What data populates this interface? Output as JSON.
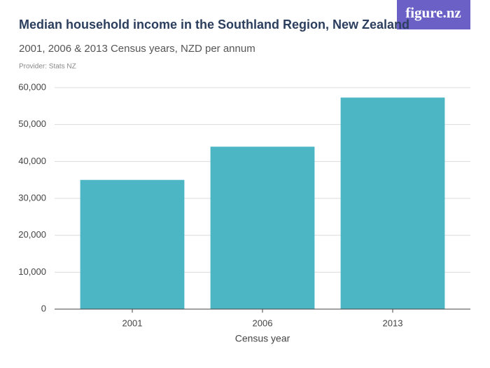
{
  "chart_data": {
    "type": "bar",
    "title": "Median household income in the Southland Region, New Zealand",
    "subtitle": "2001, 2006 & 2013 Census years, NZD per annum",
    "provider": "Provider: Stats NZ",
    "brand": "figure.nz",
    "x_label": "Census year",
    "categories": [
      "2001",
      "2006",
      "2013"
    ],
    "values": [
      35000,
      44000,
      57300
    ],
    "color": "#4db6c5",
    "ylim": [
      0,
      60000
    ],
    "yticks": [
      0,
      {
        "value": 10000,
        "label": "10,000"
      },
      {
        "value": 20000,
        "label": "20,000"
      },
      {
        "value": 30000,
        "label": "30,000"
      },
      {
        "value": 40000,
        "label": "40,000"
      },
      {
        "value": 50000,
        "label": "50,000"
      },
      {
        "value": 60000,
        "label": "60,000"
      }
    ],
    "grid": true
  }
}
